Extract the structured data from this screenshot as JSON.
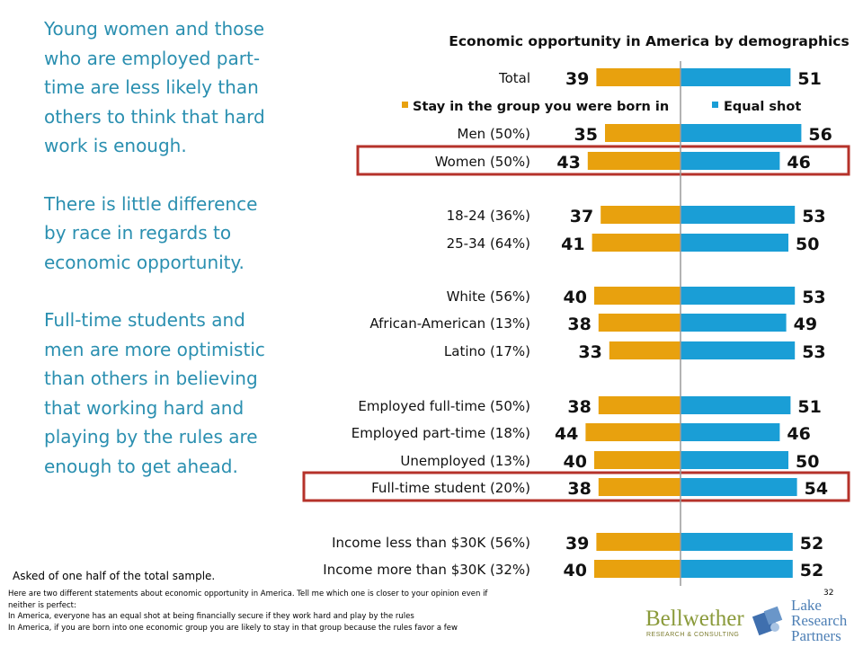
{
  "left_text": {
    "p1": "Young women and those who are employed part-time are less likely than others to think that hard work is enough.",
    "p2": "There is little difference by race in regards to economic opportunity.",
    "p3": "Full-time students and men are more optimistic than others in believing that working hard and playing by the rules are enough to get ahead."
  },
  "note": "Asked of one half of the total sample.",
  "footnote": {
    "line1": "Here are two different statements about economic opportunity in America. Tell me which one is closer to your opinion even if",
    "line2": "neither is perfect:",
    "line3": "In America, everyone has an equal shot at being financially secure if they work hard and play by the rules",
    "line4": "In America, if you are born into one economic group you are likely to stay in that group because the rules favor a few"
  },
  "page_number": "32",
  "logos": {
    "bellwether": "Bellwether",
    "bellwether_sub": "RESEARCH & CONSULTING",
    "lake_line1": "Lake",
    "lake_line2": "Research",
    "lake_line3": "Partners"
  },
  "colors": {
    "stay": "#e8a10e",
    "equal": "#1a9ed6",
    "highlight": "#b5322a",
    "left_text": "#2a8fb0"
  },
  "chart_data": {
    "type": "bar",
    "title": "Economic opportunity in America by demographics",
    "legend": {
      "stay": "Stay in the group you were born in",
      "equal": "Equal shot"
    },
    "categories": [
      "Total",
      "Men (50%)",
      "Women (50%)",
      "18-24 (36%)",
      "25-34 (64%)",
      "White (56%)",
      "African-American (13%)",
      "Latino (17%)",
      "Employed full-time (50%)",
      "Employed part-time (18%)",
      "Unemployed (13%)",
      "Full-time student (20%)",
      "Income less than $30K (56%)",
      "Income more than $30K (32%)"
    ],
    "series": [
      {
        "name": "Stay in the group you were born in",
        "values": [
          39,
          35,
          43,
          37,
          41,
          40,
          38,
          33,
          38,
          44,
          40,
          38,
          39,
          40
        ]
      },
      {
        "name": "Equal shot",
        "values": [
          51,
          56,
          46,
          53,
          50,
          53,
          49,
          53,
          51,
          46,
          50,
          54,
          52,
          52
        ]
      }
    ],
    "highlighted": [
      "Women (50%)",
      "Full-time student (20%)"
    ]
  }
}
